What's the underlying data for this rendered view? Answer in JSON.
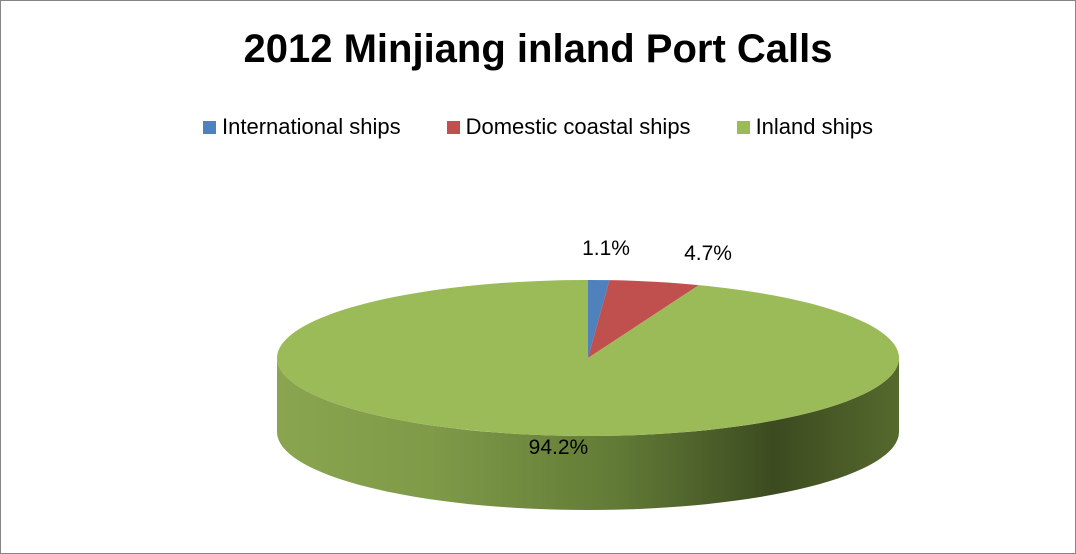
{
  "chart_data": {
    "type": "pie",
    "title": "2012 Minjiang inland Port Calls",
    "legend_position": "top",
    "three_d": true,
    "slices": [
      {
        "name": "International ships",
        "value": 1.1,
        "label": "1.1%",
        "color": "#4f81bd"
      },
      {
        "name": "Domestic coastal ships",
        "value": 4.7,
        "label": "4.7%",
        "color": "#c0504d"
      },
      {
        "name": "Inland ships",
        "value": 94.2,
        "label": "94.2%",
        "color": "#9bbb59"
      }
    ]
  }
}
